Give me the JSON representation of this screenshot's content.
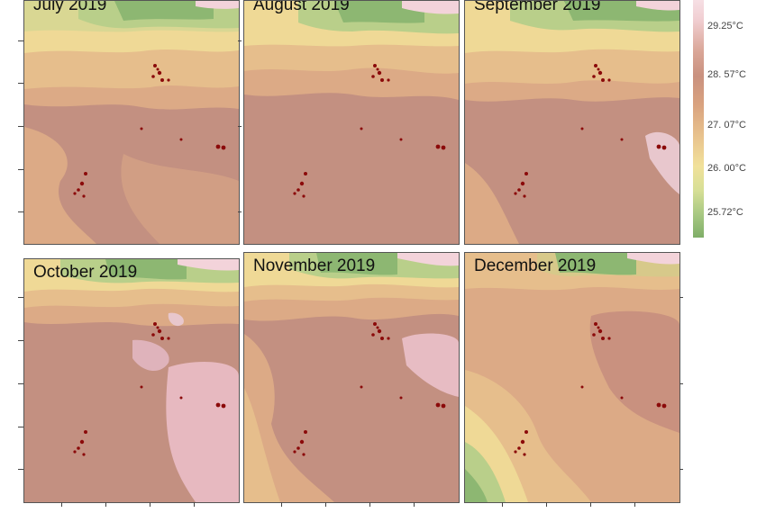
{
  "panels": [
    {
      "title": "July 2019"
    },
    {
      "title": "August 2019"
    },
    {
      "title": "September 2019"
    },
    {
      "title": "October 2019"
    },
    {
      "title": "November 2019"
    },
    {
      "title": "December 2019"
    }
  ],
  "legend": {
    "labels": [
      "29.25°C",
      "28. 57°C",
      "27. 07°C",
      "26. 00°C",
      "25.72°C"
    ]
  },
  "colors": {
    "pink": "#f3d3da",
    "light_pink": "#e8b8bf",
    "brown": "#c39081",
    "tan": "#dcaa86",
    "orange": "#e6be8c",
    "yellow": "#efd996",
    "light_green": "#b9cf8a",
    "green": "#8db772",
    "dark_green": "#6b9b58",
    "red_dots": "#8b0a0a"
  }
}
